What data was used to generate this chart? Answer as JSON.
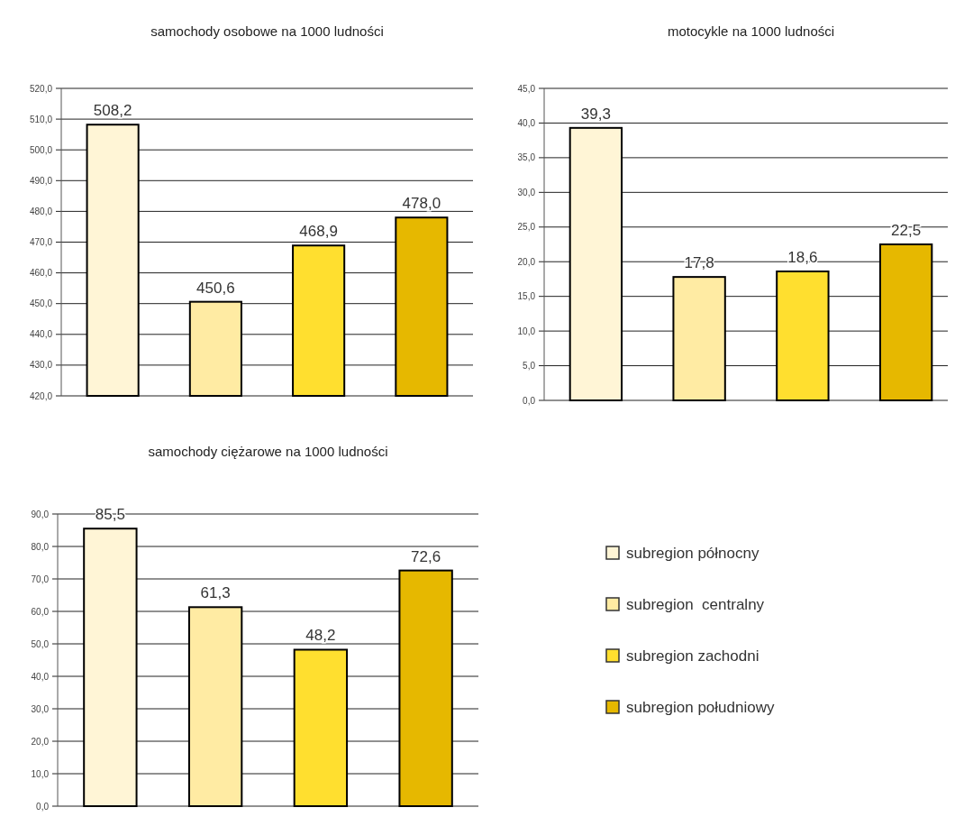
{
  "chart_data": [
    {
      "type": "bar",
      "title": "samochody osobowe na 1000 ludności",
      "categories": [
        null
      ],
      "grid": "y",
      "ylim": [
        420,
        520
      ],
      "yticks": [
        {
          "value": 420,
          "label": "420,0"
        },
        {
          "value": 430,
          "label": "430,0"
        },
        {
          "value": 440,
          "label": "440,0"
        },
        {
          "value": 450,
          "label": "450,0"
        },
        {
          "value": 460,
          "label": "460,0"
        },
        {
          "value": 470,
          "label": "470,0"
        },
        {
          "value": 480,
          "label": "480,0"
        },
        {
          "value": 490,
          "label": "490,0"
        },
        {
          "value": 500,
          "label": "500,0"
        },
        {
          "value": 510,
          "label": "510,0"
        },
        {
          "value": 520,
          "label": "520,0"
        }
      ],
      "series": [
        {
          "color": "#fff5d6",
          "values": [
            508.2
          ],
          "value_labels": [
            "508,2"
          ]
        },
        {
          "color": "#ffeba3",
          "values": [
            450.6
          ],
          "value_labels": [
            "450,6"
          ]
        },
        {
          "color": "#ffdf2f",
          "values": [
            468.9
          ],
          "value_labels": [
            "468,9"
          ]
        },
        {
          "color": "#e6b800",
          "values": [
            478.0
          ],
          "value_labels": [
            "478,0"
          ]
        }
      ]
    },
    {
      "type": "bar",
      "title": "motocykle na 1000 ludności",
      "categories": [
        null
      ],
      "grid": "y",
      "ylim": [
        0,
        45
      ],
      "yticks": [
        {
          "value": 0,
          "label": "0,0"
        },
        {
          "value": 5,
          "label": "5,0"
        },
        {
          "value": 10,
          "label": "10,0"
        },
        {
          "value": 15,
          "label": "15,0"
        },
        {
          "value": 20,
          "label": "20,0"
        },
        {
          "value": 25,
          "label": "25,0"
        },
        {
          "value": 30,
          "label": "30,0"
        },
        {
          "value": 35,
          "label": "35,0"
        },
        {
          "value": 40,
          "label": "40,0"
        },
        {
          "value": 45,
          "label": "45,0"
        }
      ],
      "series": [
        {
          "color": "#fff5d6",
          "values": [
            39.3
          ],
          "value_labels": [
            "39,3"
          ]
        },
        {
          "color": "#ffeba3",
          "values": [
            17.8
          ],
          "value_labels": [
            "17,8"
          ]
        },
        {
          "color": "#ffdf2f",
          "values": [
            18.6
          ],
          "value_labels": [
            "18,6"
          ]
        },
        {
          "color": "#e6b800",
          "values": [
            22.5
          ],
          "value_labels": [
            "22,5"
          ]
        }
      ]
    },
    {
      "type": "bar",
      "title": "samochody ciężarowe na 1000 ludności",
      "categories": [
        null
      ],
      "grid": "y",
      "legend": "right",
      "ylim": [
        0,
        90
      ],
      "yticks": [
        {
          "value": 0,
          "label": "0,0"
        },
        {
          "value": 10,
          "label": "10,0"
        },
        {
          "value": 20,
          "label": "20,0"
        },
        {
          "value": 30,
          "label": "30,0"
        },
        {
          "value": 40,
          "label": "40,0"
        },
        {
          "value": 50,
          "label": "50,0"
        },
        {
          "value": 60,
          "label": "60,0"
        },
        {
          "value": 70,
          "label": "70,0"
        },
        {
          "value": 80,
          "label": "80,0"
        },
        {
          "value": 90,
          "label": "90,0"
        }
      ],
      "series": [
        {
          "name": "subregion północny",
          "color": "#fff5d6",
          "values": [
            85.5
          ],
          "value_labels": [
            "85,5"
          ]
        },
        {
          "name": "subregion  centralny",
          "color": "#ffeba3",
          "values": [
            61.3
          ],
          "value_labels": [
            "61,3"
          ]
        },
        {
          "name": "subregion zachodni",
          "color": "#ffdf2f",
          "values": [
            48.2
          ],
          "value_labels": [
            "48,2"
          ]
        },
        {
          "name": "subregion południowy",
          "color": "#e6b800",
          "values": [
            72.6
          ],
          "value_labels": [
            "72,6"
          ]
        }
      ]
    }
  ]
}
